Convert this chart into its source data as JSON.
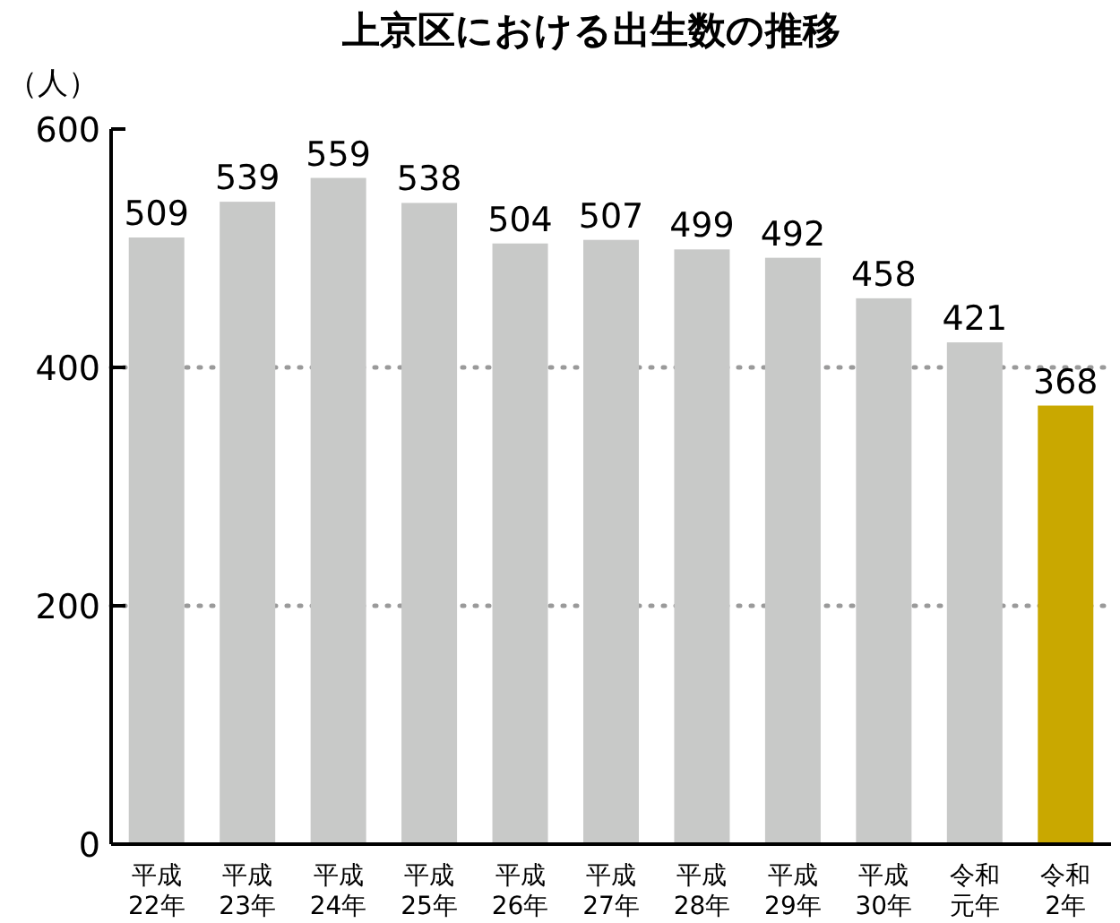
{
  "chart_data": {
    "type": "bar",
    "title": "上京区における出生数の推移",
    "ylabel": "（人）",
    "categories": [
      "平成22年",
      "平成23年",
      "平成24年",
      "平成25年",
      "平成26年",
      "平成27年",
      "平成28年",
      "平成29年",
      "平成30年",
      "令和元年",
      "令和2年"
    ],
    "values": [
      509,
      539,
      559,
      538,
      504,
      507,
      499,
      492,
      458,
      421,
      368
    ],
    "colors": [
      "#c8c9c8",
      "#c8c9c8",
      "#c8c9c8",
      "#c8c9c8",
      "#c8c9c8",
      "#c8c9c8",
      "#c8c9c8",
      "#c8c9c8",
      "#c8c9c8",
      "#c8c9c8",
      "#c9a800"
    ],
    "ylim": [
      0,
      600
    ],
    "yticks": [
      0,
      200,
      400,
      600
    ],
    "grid": "y",
    "data_labels": true
  }
}
